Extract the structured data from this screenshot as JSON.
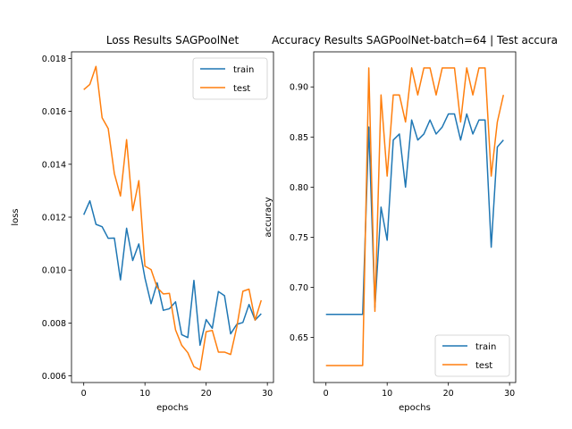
{
  "chart_data": [
    {
      "type": "line",
      "title": "Loss Results SAGPoolNet",
      "xlabel": "epochs",
      "ylabel": "loss",
      "xlim": [
        -2,
        31
      ],
      "ylim": [
        0.00575,
        0.01825
      ],
      "xticks": [
        0,
        10,
        20,
        30
      ],
      "xtick_labels": [
        "0",
        "10",
        "20",
        "30"
      ],
      "yticks": [
        0.006,
        0.008,
        0.01,
        0.012,
        0.014,
        0.016,
        0.018
      ],
      "ytick_labels": [
        "0.006",
        "0.008",
        "0.010",
        "0.012",
        "0.014",
        "0.016",
        "0.018"
      ],
      "grid": false,
      "legend_position": "upper right",
      "x": [
        0,
        1,
        2,
        3,
        4,
        5,
        6,
        7,
        8,
        9,
        10,
        11,
        12,
        13,
        14,
        15,
        16,
        17,
        18,
        19,
        20,
        21,
        22,
        23,
        24,
        25,
        26,
        27,
        28,
        29
      ],
      "series": [
        {
          "name": "train",
          "color": "#1f77b4",
          "values": [
            0.01209,
            0.01262,
            0.01173,
            0.01164,
            0.0112,
            0.01121,
            0.00963,
            0.01158,
            0.01036,
            0.01099,
            0.0097,
            0.00873,
            0.00952,
            0.00848,
            0.00854,
            0.0088,
            0.00756,
            0.00745,
            0.00961,
            0.00716,
            0.00813,
            0.0078,
            0.00919,
            0.00903,
            0.00759,
            0.00795,
            0.00802,
            0.0087,
            0.00811,
            0.00835
          ]
        },
        {
          "name": "test",
          "color": "#ff7f0e",
          "values": [
            0.01682,
            0.01702,
            0.0177,
            0.01576,
            0.01535,
            0.01365,
            0.0128,
            0.01493,
            0.01225,
            0.01338,
            0.01015,
            0.01002,
            0.00934,
            0.0091,
            0.00912,
            0.00774,
            0.00716,
            0.00688,
            0.00635,
            0.00623,
            0.00767,
            0.00772,
            0.0069,
            0.0069,
            0.00681,
            0.00784,
            0.0092,
            0.00928,
            0.00811,
            0.00886
          ]
        }
      ]
    },
    {
      "type": "line",
      "title": "Accuracy Results SAGPoolNet-batch=64 | Test accura",
      "xlabel": "epochs",
      "ylabel": "accuracy",
      "xlim": [
        -2,
        31
      ],
      "ylim": [
        0.605,
        0.935
      ],
      "xticks": [
        0,
        10,
        20,
        30
      ],
      "xtick_labels": [
        "0",
        "10",
        "20",
        "30"
      ],
      "yticks": [
        0.65,
        0.7,
        0.75,
        0.8,
        0.85,
        0.9
      ],
      "ytick_labels": [
        "0.65",
        "0.70",
        "0.75",
        "0.80",
        "0.85",
        "0.90"
      ],
      "grid": false,
      "legend_position": "lower right",
      "x": [
        0,
        1,
        2,
        3,
        4,
        5,
        6,
        7,
        8,
        9,
        10,
        11,
        12,
        13,
        14,
        15,
        16,
        17,
        18,
        19,
        20,
        21,
        22,
        23,
        24,
        25,
        26,
        27,
        28,
        29
      ],
      "series": [
        {
          "name": "train",
          "color": "#1f77b4",
          "values": [
            0.673,
            0.673,
            0.673,
            0.673,
            0.673,
            0.673,
            0.673,
            0.86,
            0.68,
            0.78,
            0.747,
            0.847,
            0.853,
            0.8,
            0.867,
            0.847,
            0.853,
            0.867,
            0.853,
            0.86,
            0.873,
            0.873,
            0.847,
            0.873,
            0.853,
            0.867,
            0.867,
            0.74,
            0.84,
            0.847
          ]
        },
        {
          "name": "test",
          "color": "#ff7f0e",
          "values": [
            0.622,
            0.622,
            0.622,
            0.622,
            0.622,
            0.622,
            0.622,
            0.919,
            0.676,
            0.892,
            0.811,
            0.892,
            0.892,
            0.865,
            0.919,
            0.892,
            0.919,
            0.919,
            0.892,
            0.919,
            0.919,
            0.919,
            0.865,
            0.919,
            0.892,
            0.919,
            0.919,
            0.811,
            0.865,
            0.892
          ]
        }
      ]
    }
  ]
}
